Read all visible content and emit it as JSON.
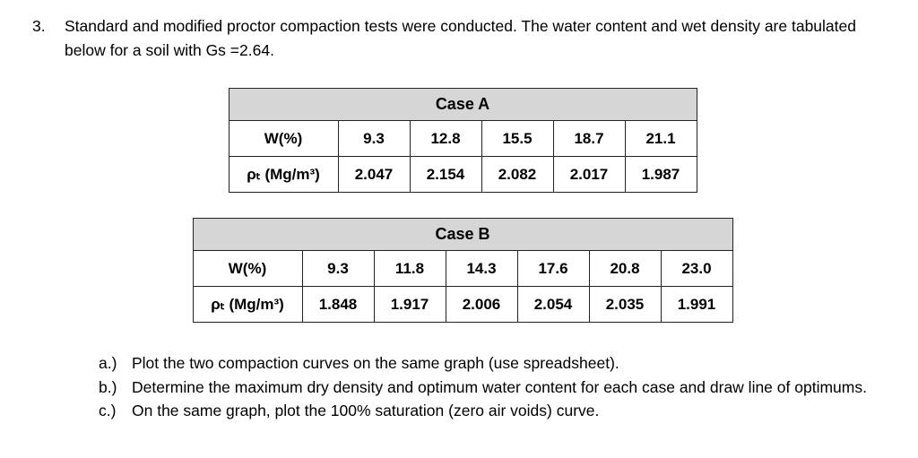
{
  "page": {
    "background": "#ffffff",
    "text_color": "#000000",
    "table_header_bg": "#d6d6d6"
  },
  "problem": {
    "number": "3.",
    "statement": "Standard and modified proctor compaction tests were conducted. The water content and wet density are tabulated below for a soil with Gs =2.64."
  },
  "tables": [
    {
      "title": "Case A",
      "rows": [
        [
          "W(%)",
          "9.3",
          "12.8",
          "15.5",
          "18.7",
          "21.1"
        ],
        [
          "ρₜ (Mg/m³)",
          "2.047",
          "2.154",
          "2.082",
          "2.017",
          "1.987"
        ]
      ]
    },
    {
      "title": "Case B",
      "rows": [
        [
          "W(%)",
          "9.3",
          "11.8",
          "14.3",
          "17.6",
          "20.8",
          "23.0"
        ],
        [
          "ρₜ (Mg/m³)",
          "1.848",
          "1.917",
          "2.006",
          "2.054",
          "2.035",
          "1.991"
        ]
      ]
    }
  ],
  "questions": [
    {
      "label": "a.)",
      "text": "Plot the two compaction curves on the same graph (use spreadsheet)."
    },
    {
      "label": "b.)",
      "text": "Determine the maximum dry density and optimum water content for each case and draw line of optimums."
    },
    {
      "label": "c.)",
      "text": "On the same graph, plot the 100% saturation (zero air voids) curve."
    }
  ]
}
